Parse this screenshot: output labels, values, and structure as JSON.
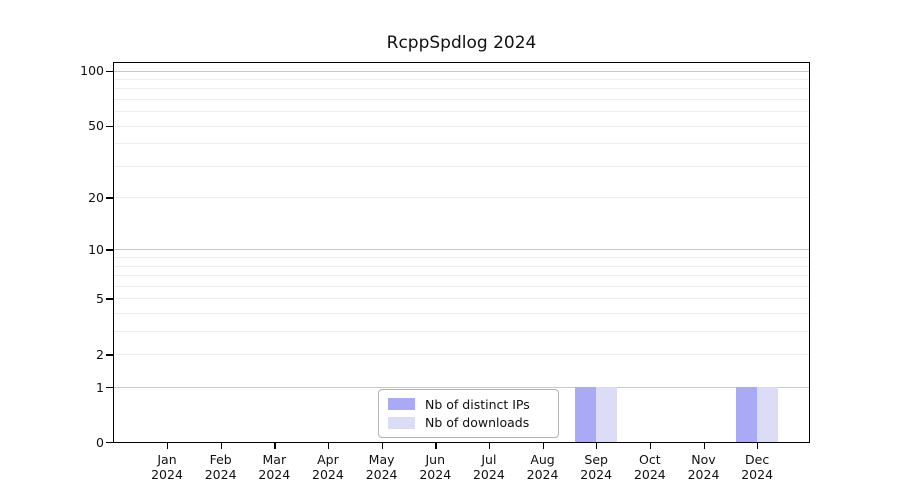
{
  "title": "RcppSpdlog 2024",
  "chart_data": {
    "type": "bar",
    "title": "RcppSpdlog 2024",
    "x_months": [
      "Jan",
      "Feb",
      "Mar",
      "Apr",
      "May",
      "Jun",
      "Jul",
      "Aug",
      "Sep",
      "Oct",
      "Nov",
      "Dec"
    ],
    "x_year": "2024",
    "categories": [
      "Jan 2024",
      "Feb 2024",
      "Mar 2024",
      "Apr 2024",
      "May 2024",
      "Jun 2024",
      "Jul 2024",
      "Aug 2024",
      "Sep 2024",
      "Oct 2024",
      "Nov 2024",
      "Dec 2024"
    ],
    "series": [
      {
        "name": "Nb of distinct IPs",
        "color": "#a9a9f6",
        "values": [
          0,
          0,
          0,
          0,
          0,
          0,
          0,
          0,
          1,
          0,
          0,
          1
        ]
      },
      {
        "name": "Nb of downloads",
        "color": "#dcdcf7",
        "values": [
          0,
          0,
          0,
          0,
          0,
          0,
          0,
          0,
          1,
          0,
          0,
          1
        ]
      }
    ],
    "yscale": "log1p",
    "ylim": [
      0,
      110
    ],
    "yticks": [
      100,
      50,
      20,
      10,
      5,
      2,
      1,
      0
    ],
    "grid_major": [
      1,
      10,
      100
    ],
    "grid_minor": [
      2,
      3,
      4,
      5,
      6,
      7,
      8,
      9,
      20,
      30,
      40,
      50,
      60,
      70,
      80,
      90
    ],
    "grid": true,
    "legend_position": "inside-bottom-center"
  }
}
